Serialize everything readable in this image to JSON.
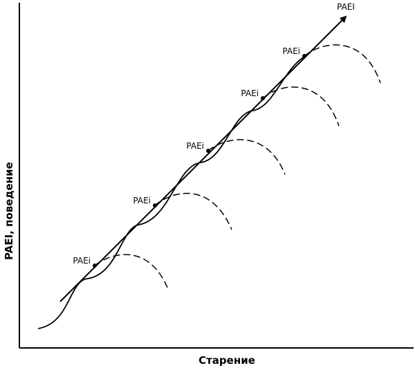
{
  "axes": {
    "x_label": "Старение",
    "y_label": "PAEI, поведение"
  },
  "arrow_label": "PAEI",
  "points": [
    {
      "label": "PAEi"
    },
    {
      "label": "PAEi"
    },
    {
      "label": "PAEi"
    },
    {
      "label": "PAEi"
    },
    {
      "label": "PAEi"
    }
  ]
}
